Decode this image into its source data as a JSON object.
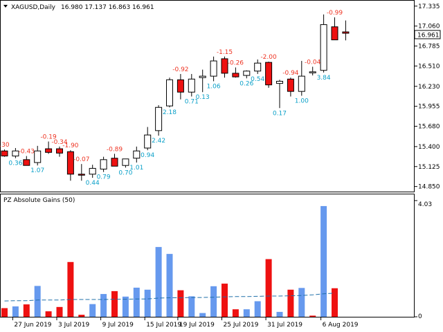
{
  "main_panel": {
    "symbol_label": "XAGUSD,Daily",
    "ohlc_label": "16.980 17.137 16.863 16.961",
    "current_price_label": "16.961",
    "price_axis_ticks": [
      "17.335",
      "17.060",
      "16.785",
      "16.510",
      "16.230",
      "15.955",
      "15.680",
      "15.400",
      "15.125",
      "14.850"
    ]
  },
  "indicator_panel": {
    "title": "PZ Absolute Gains (50)",
    "axis_ticks": [
      "4.03",
      "0"
    ]
  },
  "date_axis_ticks": [
    "27 Jun 2019",
    "3 Jul 2019",
    "9 Jul 2019",
    "15 Jul 2019",
    "19 Jul 2019",
    "25 Jul 2019",
    "31 Jul 2019",
    "6 Aug 2019"
  ],
  "colors": {
    "bull_body": "#ffffff",
    "bear_body": "#ee1111",
    "wick": "#000000",
    "gain_label": "#0aa0c8",
    "loss_label": "#ee3322",
    "gain_bar": "#6699ee",
    "loss_bar": "#ee1111",
    "avg_line": "#1f6fa8"
  },
  "chart_data": {
    "type": "candlestick",
    "price_ylim": [
      14.78,
      17.4
    ],
    "candles": [
      {
        "o": 15.34,
        "h": 15.36,
        "l": 15.26,
        "c": 15.27
      },
      {
        "o": 15.27,
        "h": 15.38,
        "l": 15.24,
        "c": 15.34
      },
      {
        "o": 15.22,
        "h": 15.27,
        "l": 15.16,
        "c": 15.14
      },
      {
        "o": 15.18,
        "h": 15.41,
        "l": 15.14,
        "c": 15.34
      },
      {
        "o": 15.37,
        "h": 15.47,
        "l": 15.3,
        "c": 15.32
      },
      {
        "o": 15.37,
        "h": 15.4,
        "l": 15.26,
        "c": 15.31
      },
      {
        "o": 15.33,
        "h": 15.35,
        "l": 14.93,
        "c": 15.02
      },
      {
        "o": 15.02,
        "h": 15.16,
        "l": 14.93,
        "c": 15.01
      },
      {
        "o": 15.02,
        "h": 15.15,
        "l": 14.97,
        "c": 15.1
      },
      {
        "o": 15.09,
        "h": 15.26,
        "l": 15.05,
        "c": 15.22
      },
      {
        "o": 15.24,
        "h": 15.3,
        "l": 15.15,
        "c": 15.13
      },
      {
        "o": 15.14,
        "h": 15.23,
        "l": 15.11,
        "c": 15.23
      },
      {
        "o": 15.24,
        "h": 15.4,
        "l": 15.18,
        "c": 15.34
      },
      {
        "o": 15.38,
        "h": 15.67,
        "l": 15.35,
        "c": 15.56
      },
      {
        "o": 15.62,
        "h": 15.97,
        "l": 15.55,
        "c": 15.94
      },
      {
        "o": 15.96,
        "h": 16.35,
        "l": 15.94,
        "c": 16.32
      },
      {
        "o": 16.32,
        "h": 16.4,
        "l": 16.05,
        "c": 16.15
      },
      {
        "o": 16.15,
        "h": 16.4,
        "l": 16.09,
        "c": 16.33
      },
      {
        "o": 16.35,
        "h": 16.46,
        "l": 16.15,
        "c": 16.37
      },
      {
        "o": 16.37,
        "h": 16.64,
        "l": 16.3,
        "c": 16.58
      },
      {
        "o": 16.61,
        "h": 16.64,
        "l": 16.35,
        "c": 16.41
      },
      {
        "o": 16.41,
        "h": 16.49,
        "l": 16.35,
        "c": 16.36
      },
      {
        "o": 16.38,
        "h": 16.45,
        "l": 16.34,
        "c": 16.44
      },
      {
        "o": 16.44,
        "h": 16.6,
        "l": 16.4,
        "c": 16.55
      },
      {
        "o": 16.56,
        "h": 16.57,
        "l": 16.21,
        "c": 16.25
      },
      {
        "o": 16.27,
        "h": 16.32,
        "l": 15.93,
        "c": 16.3
      },
      {
        "o": 16.33,
        "h": 16.35,
        "l": 16.09,
        "c": 16.16
      },
      {
        "o": 16.16,
        "h": 16.58,
        "l": 16.1,
        "c": 16.37
      },
      {
        "o": 16.42,
        "h": 16.5,
        "l": 16.38,
        "c": 16.43
      },
      {
        "o": 16.45,
        "h": 17.22,
        "l": 16.42,
        "c": 17.08
      },
      {
        "o": 17.05,
        "h": 17.18,
        "l": 16.88,
        "c": 16.87
      },
      {
        "o": 16.98,
        "h": 17.137,
        "l": 16.863,
        "c": 16.961
      }
    ],
    "candle_labels": [
      {
        "i": 0,
        "text": ".30",
        "sign": "loss",
        "pos": "above"
      },
      {
        "i": 1,
        "text": "0.36",
        "sign": "gain",
        "pos": "below"
      },
      {
        "i": 2,
        "text": "-0.43",
        "sign": "loss",
        "pos": "above"
      },
      {
        "i": 3,
        "text": "1.07",
        "sign": "gain",
        "pos": "below"
      },
      {
        "i": 4,
        "text": "-0.19",
        "sign": "loss",
        "pos": "above"
      },
      {
        "i": 5,
        "text": "-0.34",
        "sign": "loss",
        "pos": "above"
      },
      {
        "i": 6,
        "text": "-1.90",
        "sign": "loss",
        "pos": "above"
      },
      {
        "i": 7,
        "text": "-0.07",
        "sign": "loss",
        "pos": "above"
      },
      {
        "i": 8,
        "text": "0.44",
        "sign": "gain",
        "pos": "below"
      },
      {
        "i": 9,
        "text": "0.79",
        "sign": "gain",
        "pos": "below"
      },
      {
        "i": 10,
        "text": "-0.89",
        "sign": "loss",
        "pos": "above"
      },
      {
        "i": 11,
        "text": "0.70",
        "sign": "gain",
        "pos": "below"
      },
      {
        "i": 12,
        "text": "1.01",
        "sign": "gain",
        "pos": "below"
      },
      {
        "i": 13,
        "text": "0.94",
        "sign": "gain",
        "pos": "below"
      },
      {
        "i": 14,
        "text": "2.42",
        "sign": "gain",
        "pos": "below"
      },
      {
        "i": 15,
        "text": "2.18",
        "sign": "gain",
        "pos": "below"
      },
      {
        "i": 16,
        "text": "-0.92",
        "sign": "loss",
        "pos": "above"
      },
      {
        "i": 17,
        "text": "0.71",
        "sign": "gain",
        "pos": "below"
      },
      {
        "i": 18,
        "text": "0.13",
        "sign": "gain",
        "pos": "below"
      },
      {
        "i": 19,
        "text": "1.06",
        "sign": "gain",
        "pos": "below"
      },
      {
        "i": 20,
        "text": "-1.15",
        "sign": "loss",
        "pos": "above"
      },
      {
        "i": 21,
        "text": "-0.26",
        "sign": "loss",
        "pos": "above"
      },
      {
        "i": 22,
        "text": "0.26",
        "sign": "gain",
        "pos": "below"
      },
      {
        "i": 23,
        "text": "0.54",
        "sign": "gain",
        "pos": "below"
      },
      {
        "i": 24,
        "text": "-2.00",
        "sign": "loss",
        "pos": "above"
      },
      {
        "i": 25,
        "text": "0.17",
        "sign": "gain",
        "pos": "below"
      },
      {
        "i": 26,
        "text": "-0.94",
        "sign": "loss",
        "pos": "above"
      },
      {
        "i": 27,
        "text": "1.00",
        "sign": "gain",
        "pos": "below"
      },
      {
        "i": 28,
        "text": "-0.04",
        "sign": "loss",
        "pos": "above"
      },
      {
        "i": 29,
        "text": "3.84",
        "sign": "gain",
        "pos": "below"
      },
      {
        "i": 30,
        "text": "-0.99",
        "sign": "loss",
        "pos": "above"
      }
    ],
    "indicator_ylim": [
      0,
      4.03
    ],
    "gain_bars": [
      {
        "i": 0,
        "v": 0.3,
        "sign": "loss"
      },
      {
        "i": 1,
        "v": 0.36,
        "sign": "gain"
      },
      {
        "i": 2,
        "v": 0.43,
        "sign": "loss"
      },
      {
        "i": 3,
        "v": 1.07,
        "sign": "gain"
      },
      {
        "i": 4,
        "v": 0.19,
        "sign": "loss"
      },
      {
        "i": 5,
        "v": 0.34,
        "sign": "loss"
      },
      {
        "i": 6,
        "v": 1.9,
        "sign": "loss"
      },
      {
        "i": 7,
        "v": 0.07,
        "sign": "loss"
      },
      {
        "i": 8,
        "v": 0.44,
        "sign": "gain"
      },
      {
        "i": 9,
        "v": 0.79,
        "sign": "gain"
      },
      {
        "i": 10,
        "v": 0.89,
        "sign": "loss"
      },
      {
        "i": 11,
        "v": 0.7,
        "sign": "gain"
      },
      {
        "i": 12,
        "v": 1.01,
        "sign": "gain"
      },
      {
        "i": 13,
        "v": 0.94,
        "sign": "gain"
      },
      {
        "i": 14,
        "v": 2.42,
        "sign": "gain"
      },
      {
        "i": 15,
        "v": 2.18,
        "sign": "gain"
      },
      {
        "i": 16,
        "v": 0.92,
        "sign": "loss"
      },
      {
        "i": 17,
        "v": 0.71,
        "sign": "gain"
      },
      {
        "i": 18,
        "v": 0.13,
        "sign": "gain"
      },
      {
        "i": 19,
        "v": 1.06,
        "sign": "gain"
      },
      {
        "i": 20,
        "v": 1.15,
        "sign": "loss"
      },
      {
        "i": 21,
        "v": 0.26,
        "sign": "loss"
      },
      {
        "i": 22,
        "v": 0.26,
        "sign": "gain"
      },
      {
        "i": 23,
        "v": 0.54,
        "sign": "gain"
      },
      {
        "i": 24,
        "v": 2.0,
        "sign": "loss"
      },
      {
        "i": 25,
        "v": 0.17,
        "sign": "gain"
      },
      {
        "i": 26,
        "v": 0.94,
        "sign": "loss"
      },
      {
        "i": 27,
        "v": 1.0,
        "sign": "gain"
      },
      {
        "i": 28,
        "v": 0.04,
        "sign": "loss"
      },
      {
        "i": 29,
        "v": 3.84,
        "sign": "gain"
      },
      {
        "i": 30,
        "v": 0.99,
        "sign": "loss"
      }
    ],
    "avg_line": [
      0.55,
      0.56,
      0.56,
      0.58,
      0.58,
      0.58,
      0.6,
      0.6,
      0.6,
      0.6,
      0.61,
      0.61,
      0.62,
      0.62,
      0.65,
      0.66,
      0.66,
      0.67,
      0.67,
      0.68,
      0.69,
      0.7,
      0.7,
      0.71,
      0.72,
      0.72,
      0.73,
      0.74,
      0.76,
      0.8,
      0.82
    ]
  }
}
